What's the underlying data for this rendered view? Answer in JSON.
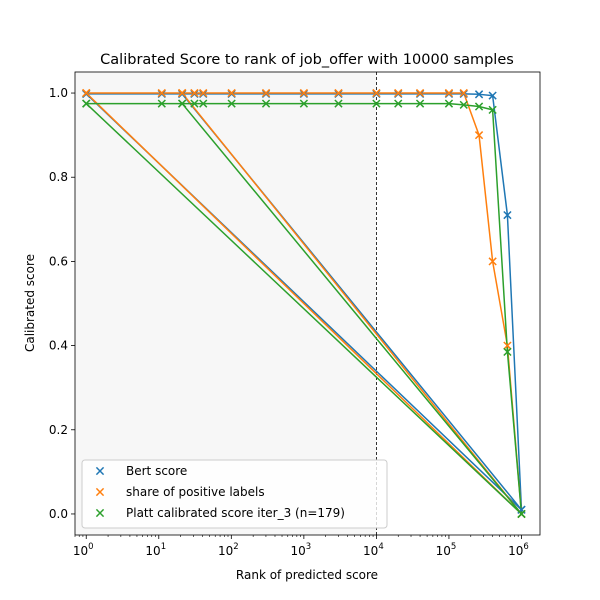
{
  "chart_data": {
    "type": "line",
    "title": "Calibrated Score to rank of job_offer with 10000 samples",
    "xlabel": "Rank of predicted score",
    "ylabel": "Calibrated score",
    "xscale": "log",
    "xlim": [
      0.7,
      1800000
    ],
    "ylim": [
      -0.05,
      1.05
    ],
    "xticks": [
      {
        "value": 1,
        "base": "10",
        "exp": "0"
      },
      {
        "value": 10,
        "base": "10",
        "exp": "1"
      },
      {
        "value": 100,
        "base": "10",
        "exp": "2"
      },
      {
        "value": 1000,
        "base": "10",
        "exp": "3"
      },
      {
        "value": 10000,
        "base": "10",
        "exp": "4"
      },
      {
        "value": 100000,
        "base": "10",
        "exp": "5"
      },
      {
        "value": 1000000,
        "base": "10",
        "exp": "6"
      }
    ],
    "yticks": [
      "0.0",
      "0.2",
      "0.4",
      "0.6",
      "0.8",
      "1.0"
    ],
    "vline_x": 10000,
    "shaded_region": [
      0.7,
      10000
    ],
    "legend_position": "lower-left",
    "series": [
      {
        "name": "Bert score",
        "color": "#1f77b4",
        "x": [
          1,
          11,
          21,
          31,
          41,
          101,
          301,
          1001,
          3001,
          10001,
          20001,
          40001,
          100001,
          160001,
          260001,
          400001,
          640001,
          1000000,
          1,
          21,
          1000000
        ],
        "y": [
          0.998,
          0.998,
          0.998,
          0.998,
          0.998,
          0.998,
          0.998,
          0.998,
          0.998,
          0.998,
          0.998,
          0.998,
          0.998,
          0.998,
          0.997,
          0.994,
          0.71,
          0.01,
          0.998,
          0.998,
          0.01
        ]
      },
      {
        "name": "share of positive labels",
        "color": "#ff7f0e",
        "x": [
          1,
          11,
          21,
          31,
          41,
          101,
          301,
          1001,
          3001,
          10001,
          20001,
          40001,
          100001,
          160001,
          260001,
          400001,
          640001,
          1000000,
          1,
          21,
          1000000
        ],
        "y": [
          1.0,
          1.0,
          1.0,
          1.0,
          1.0,
          1.0,
          1.0,
          1.0,
          1.0,
          1.0,
          1.0,
          1.0,
          1.0,
          1.0,
          0.9,
          0.6,
          0.4,
          0.0,
          1.0,
          1.0,
          0.0
        ]
      },
      {
        "name": "Platt calibrated score iter_3 (n=179)",
        "color": "#2ca02c",
        "x": [
          1,
          11,
          21,
          31,
          41,
          101,
          301,
          1001,
          3001,
          10001,
          20001,
          40001,
          100001,
          160001,
          260001,
          400001,
          640001,
          1000000,
          1,
          21,
          1000000
        ],
        "y": [
          0.975,
          0.975,
          0.975,
          0.975,
          0.975,
          0.975,
          0.975,
          0.975,
          0.975,
          0.975,
          0.975,
          0.975,
          0.975,
          0.972,
          0.968,
          0.96,
          0.385,
          0.0,
          0.975,
          0.975,
          0.0
        ]
      }
    ]
  }
}
